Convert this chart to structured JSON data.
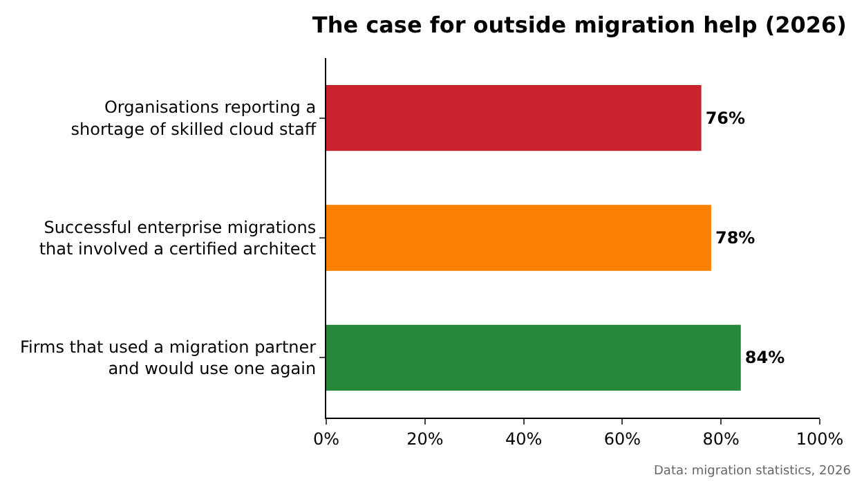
{
  "chart_data": {
    "type": "bar",
    "orientation": "horizontal",
    "title": "The case for outside migration help (2026)",
    "categories": [
      "Organisations reporting a\nshortage of skilled cloud staff",
      "Successful enterprise migrations\nthat involved a certified architect",
      "Firms that used a migration partner\nand would use one again"
    ],
    "values": [
      76,
      78,
      84
    ],
    "colors": [
      "#c8232c",
      "#fb8006",
      "#278a3a"
    ],
    "value_labels": [
      "76%",
      "78%",
      "84%"
    ],
    "xlim": [
      0,
      100
    ],
    "xticks": [
      {
        "value": 0,
        "label": "0%"
      },
      {
        "value": 20,
        "label": "20%"
      },
      {
        "value": 40,
        "label": "40%"
      },
      {
        "value": 60,
        "label": "60%"
      },
      {
        "value": 80,
        "label": "80%"
      },
      {
        "value": 100,
        "label": "100%"
      }
    ],
    "legend": false,
    "annotations": [
      "Data: migration statistics, 2026"
    ]
  }
}
